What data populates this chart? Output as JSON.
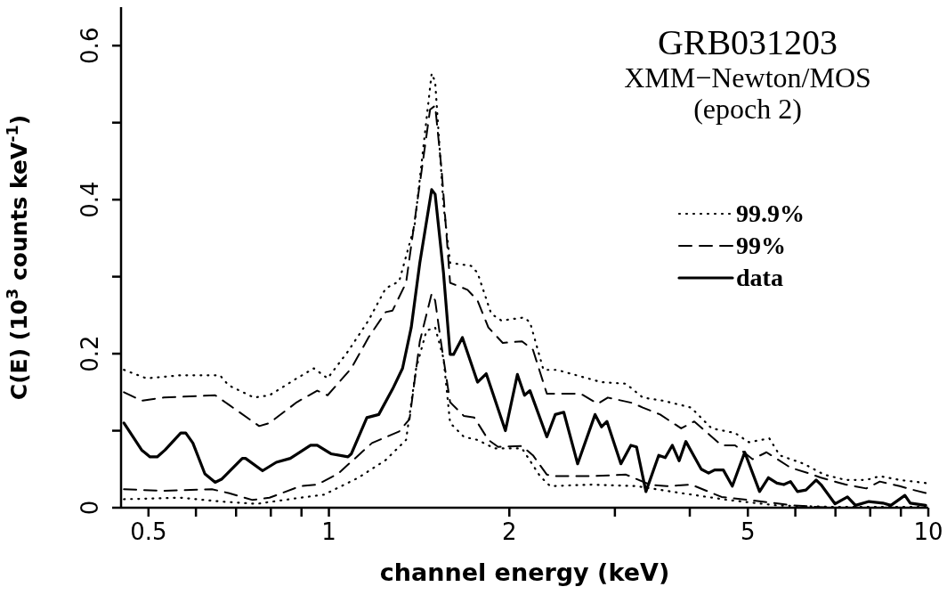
{
  "chart_data": {
    "type": "line",
    "title": "GRB031203",
    "subtitle": "XMM−Newton/MOS",
    "annotations": [
      "(epoch 2)"
    ],
    "xlabel": "channel energy (keV)",
    "ylabel": "C(E) (10$^{3}$ counts keV$^{-1}$)",
    "log": "x",
    "legend": "top right",
    "xlim": [
      0.45,
      10
    ],
    "xticks": [
      0.5,
      {
        "value": 0.6,
        "label": null
      },
      {
        "value": 0.7,
        "label": null
      },
      {
        "value": 0.8,
        "label": null
      },
      {
        "value": 0.9,
        "label": null
      },
      1,
      2,
      {
        "value": 3,
        "label": null
      },
      {
        "value": 4,
        "label": null
      },
      5,
      {
        "value": 6,
        "label": null
      },
      {
        "value": 7,
        "label": null
      },
      {
        "value": 8,
        "label": null
      },
      {
        "value": 9,
        "label": null
      },
      10
    ],
    "ylim": [
      0,
      0.65
    ],
    "yticks": [
      0,
      {
        "value": 0.1,
        "label": null
      },
      0.2,
      {
        "value": 0.3,
        "label": null
      },
      0.4,
      {
        "value": 0.5,
        "label": null
      },
      0.6
    ],
    "series": [
      {
        "name": "99.9%",
        "color": "#000000",
        "line_style": "dotted",
        "x": [
          0.455,
          0.496,
          0.566,
          0.658,
          0.68,
          0.75,
          0.796,
          0.884,
          0.944,
          0.995,
          1.076,
          1.164,
          1.244,
          1.31,
          1.39,
          1.484,
          1.504,
          1.553,
          1.593,
          1.727,
          1.77,
          1.865,
          1.94,
          2.115,
          2.165,
          2.28,
          2.4,
          2.85,
          3.13,
          3.34,
          3.61,
          4.02,
          4.35,
          4.76,
          5.02,
          5.43,
          5.65,
          6.2,
          6.7,
          7.28,
          7.88,
          8.3,
          8.96,
          9.45,
          9.9
        ],
        "values": [
          0.179,
          0.168,
          0.172,
          0.172,
          0.159,
          0.143,
          0.146,
          0.168,
          0.181,
          0.168,
          0.203,
          0.243,
          0.285,
          0.294,
          0.367,
          0.564,
          0.553,
          0.393,
          0.318,
          0.314,
          0.305,
          0.252,
          0.243,
          0.247,
          0.241,
          0.179,
          0.179,
          0.163,
          0.161,
          0.143,
          0.139,
          0.13,
          0.103,
          0.097,
          0.085,
          0.09,
          0.068,
          0.057,
          0.043,
          0.036,
          0.036,
          0.041,
          0.036,
          0.034,
          0.032
        ]
      },
      {
        "name": "99%",
        "color": "#000000",
        "line_style": "dashed",
        "x": [
          0.455,
          0.487,
          0.53,
          0.646,
          0.68,
          0.765,
          0.796,
          0.884,
          0.956,
          0.995,
          1.09,
          1.164,
          1.244,
          1.277,
          1.345,
          1.475,
          1.504,
          1.542,
          1.593,
          1.703,
          1.77,
          1.845,
          1.95,
          2.1,
          2.19,
          2.31,
          2.63,
          2.81,
          2.92,
          3.21,
          3.34,
          3.57,
          3.87,
          4.07,
          4.52,
          4.76,
          5.09,
          5.37,
          5.89,
          6.3,
          6.62,
          7.28,
          7.88,
          8.3,
          8.96,
          9.45,
          9.9
        ],
        "values": [
          0.15,
          0.139,
          0.143,
          0.146,
          0.134,
          0.106,
          0.11,
          0.137,
          0.152,
          0.146,
          0.181,
          0.221,
          0.254,
          0.256,
          0.292,
          0.517,
          0.522,
          0.438,
          0.292,
          0.283,
          0.269,
          0.234,
          0.214,
          0.216,
          0.205,
          0.148,
          0.148,
          0.135,
          0.143,
          0.136,
          0.13,
          0.121,
          0.103,
          0.112,
          0.081,
          0.081,
          0.063,
          0.072,
          0.052,
          0.045,
          0.039,
          0.03,
          0.025,
          0.034,
          0.028,
          0.023,
          0.019
        ]
      },
      {
        "name": "data",
        "color": "#000000",
        "line_style": "solid",
        "x": [
          0.455,
          0.487,
          0.503,
          0.517,
          0.533,
          0.566,
          0.577,
          0.593,
          0.621,
          0.646,
          0.662,
          0.717,
          0.726,
          0.775,
          0.817,
          0.862,
          0.932,
          0.956,
          1.008,
          1.076,
          1.09,
          1.157,
          1.211,
          1.277,
          1.327,
          1.372,
          1.418,
          1.484,
          1.504,
          1.553,
          1.593,
          1.614,
          1.67,
          1.77,
          1.83,
          1.97,
          2.063,
          2.12,
          2.165,
          2.31,
          2.386,
          2.465,
          2.6,
          2.78,
          2.85,
          2.91,
          3.07,
          3.19,
          3.26,
          3.38,
          3.55,
          3.64,
          3.74,
          3.84,
          3.94,
          4.18,
          4.3,
          4.4,
          4.55,
          4.71,
          4.94,
          5.23,
          5.41,
          5.59,
          5.74,
          5.89,
          6.05,
          6.25,
          6.5,
          6.62,
          6.99,
          7.33,
          7.56,
          7.96,
          8.4,
          8.66,
          9.14,
          9.33,
          9.9
        ],
        "values": [
          0.11,
          0.075,
          0.066,
          0.066,
          0.075,
          0.097,
          0.097,
          0.084,
          0.044,
          0.033,
          0.037,
          0.064,
          0.064,
          0.048,
          0.059,
          0.064,
          0.081,
          0.081,
          0.07,
          0.066,
          0.07,
          0.117,
          0.121,
          0.154,
          0.181,
          0.234,
          0.318,
          0.413,
          0.407,
          0.305,
          0.199,
          0.199,
          0.221,
          0.163,
          0.174,
          0.1,
          0.173,
          0.146,
          0.152,
          0.092,
          0.121,
          0.124,
          0.057,
          0.121,
          0.105,
          0.112,
          0.057,
          0.081,
          0.079,
          0.021,
          0.068,
          0.065,
          0.081,
          0.061,
          0.086,
          0.05,
          0.045,
          0.049,
          0.049,
          0.028,
          0.072,
          0.021,
          0.039,
          0.032,
          0.03,
          0.034,
          0.021,
          0.023,
          0.036,
          0.03,
          0.005,
          0.014,
          0.003,
          0.008,
          0.006,
          0.003,
          0.016,
          0.006,
          0.003
        ]
      },
      {
        "color": "#000000",
        "line_style": "dashed",
        "x": [
          0.455,
          0.53,
          0.638,
          0.68,
          0.746,
          0.796,
          0.896,
          0.956,
          1.035,
          1.18,
          1.31,
          1.363,
          1.418,
          1.484,
          1.504,
          1.534,
          1.593,
          1.68,
          1.748,
          1.845,
          1.916,
          2.1,
          2.19,
          2.31,
          2.37,
          2.74,
          3.13,
          3.43,
          3.66,
          4.02,
          4.52,
          5.02,
          5.96,
          6.55,
          6.9,
          10
        ],
        "values": [
          0.024,
          0.022,
          0.024,
          0.019,
          0.01,
          0.013,
          0.028,
          0.03,
          0.044,
          0.084,
          0.099,
          0.115,
          0.216,
          0.278,
          0.269,
          0.221,
          0.137,
          0.119,
          0.117,
          0.088,
          0.079,
          0.08,
          0.068,
          0.043,
          0.041,
          0.041,
          0.043,
          0.03,
          0.028,
          0.03,
          0.014,
          0.01,
          0.003,
          0.001,
          0,
          0
        ]
      },
      {
        "color": "#000000",
        "line_style": "dotted",
        "x": [
          0.455,
          0.566,
          0.662,
          0.757,
          0.896,
          0.982,
          1.12,
          1.244,
          1.345,
          1.398,
          1.455,
          1.504,
          1.553,
          1.593,
          1.68,
          1.77,
          1.89,
          2.1,
          2.25,
          2.34,
          2.74,
          3.26,
          3.87,
          4.64,
          5.59,
          6.9,
          9.9
        ],
        "values": [
          0.011,
          0.013,
          0.008,
          0.005,
          0.013,
          0.017,
          0.039,
          0.062,
          0.088,
          0.181,
          0.23,
          0.234,
          0.194,
          0.11,
          0.092,
          0.088,
          0.077,
          0.077,
          0.041,
          0.028,
          0.03,
          0.028,
          0.019,
          0.01,
          0.003,
          0.001,
          0.001
        ]
      }
    ]
  }
}
